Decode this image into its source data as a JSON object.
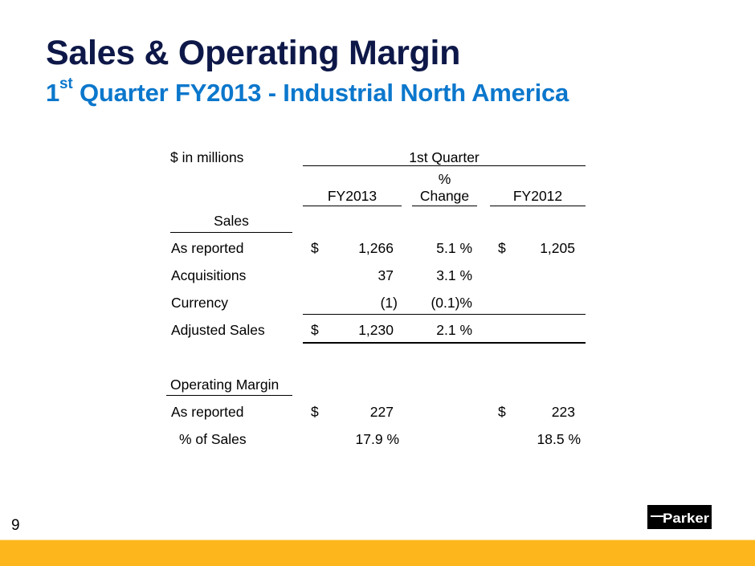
{
  "header": {
    "title": "Sales & Operating Margin",
    "subtitle_ordinal": "1",
    "subtitle_sup": "st",
    "subtitle_rest": " Quarter FY2013 - Industrial North America"
  },
  "table": {
    "units_label": "$  in millions",
    "group_header": "1st Quarter",
    "columns": {
      "fy2013": "FY2013",
      "pct_change_line1": "%",
      "pct_change_line2": "Change",
      "fy2012": "FY2012"
    },
    "sales_section": {
      "heading": "Sales",
      "rows": [
        {
          "label": "As reported",
          "fy2013_cur": "$",
          "fy2013": "1,266",
          "pct_change": "5.1 %",
          "fy2012_cur": "$",
          "fy2012": "1,205"
        },
        {
          "label": "Acquisitions",
          "fy2013_cur": "",
          "fy2013": "37",
          "pct_change": "3.1 %",
          "fy2012_cur": "",
          "fy2012": ""
        },
        {
          "label": "Currency",
          "fy2013_cur": "",
          "fy2013": "(1)",
          "pct_change": "(0.1)%",
          "fy2012_cur": "",
          "fy2012": ""
        },
        {
          "label": "Adjusted Sales",
          "fy2013_cur": "$",
          "fy2013": "1,230",
          "pct_change": "2.1 %",
          "fy2012_cur": "",
          "fy2012": ""
        }
      ]
    },
    "margin_section": {
      "heading": "Operating Margin",
      "rows": [
        {
          "label": "As reported",
          "fy2013_cur": "$",
          "fy2013": "227",
          "fy2012_cur": "$",
          "fy2012": "223"
        },
        {
          "label": "% of Sales",
          "fy2013": "17.9 %",
          "fy2012": "18.5 %"
        }
      ]
    }
  },
  "footer": {
    "page_number": "9",
    "logo_text": "Parker",
    "bar_color": "#fdb71c"
  },
  "colors": {
    "title": "#0e1848",
    "subtitle": "#0b77cc"
  }
}
